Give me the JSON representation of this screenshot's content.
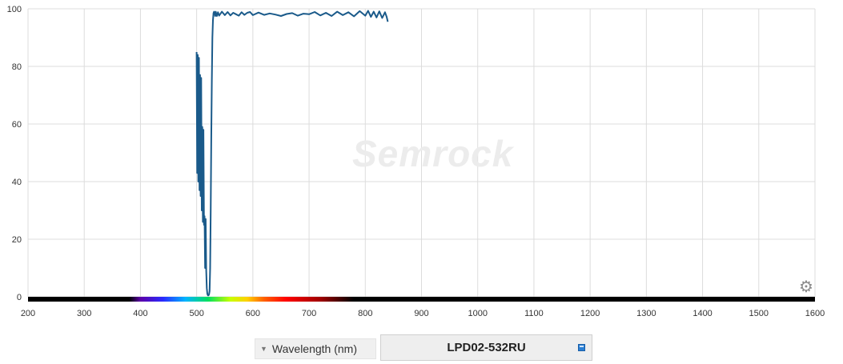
{
  "chart_data": {
    "type": "line",
    "title": "",
    "xlabel": "Wavelength (nm)",
    "ylabel": "",
    "xlim": [
      200,
      1600
    ],
    "ylim": [
      0,
      100
    ],
    "x_ticks": [
      200,
      300,
      400,
      500,
      600,
      700,
      800,
      900,
      1000,
      1100,
      1200,
      1300,
      1400,
      1500,
      1600
    ],
    "y_ticks": [
      0,
      20,
      40,
      60,
      80,
      100
    ],
    "grid": true,
    "series": [
      {
        "name": "LPD02-532RU",
        "color": "#1a5a8a",
        "x": [
          500,
          501,
          502,
          503,
          504,
          505,
          506,
          507,
          508,
          509,
          510,
          511,
          512,
          513,
          514,
          515,
          516,
          517,
          518,
          519,
          520,
          521,
          522,
          523,
          524,
          525,
          526,
          527,
          528,
          529,
          530,
          531,
          532,
          533,
          534,
          536,
          538,
          540,
          545,
          550,
          555,
          560,
          565,
          570,
          575,
          580,
          585,
          590,
          595,
          600,
          610,
          620,
          630,
          640,
          650,
          660,
          670,
          680,
          690,
          700,
          710,
          720,
          730,
          740,
          750,
          760,
          770,
          780,
          790,
          800,
          805,
          810,
          815,
          820,
          825,
          830,
          835,
          838,
          840
        ],
        "y": [
          85,
          43,
          84,
          40,
          83,
          37,
          77,
          35,
          76,
          30,
          59,
          26,
          58,
          25,
          28,
          10,
          27,
          9,
          3,
          1,
          0.5,
          0.5,
          0.8,
          2,
          10,
          30,
          55,
          75,
          90,
          96,
          98.5,
          99,
          98.7,
          97.5,
          99,
          97.5,
          98.8,
          97.6,
          99,
          97.8,
          98.9,
          97.7,
          98.6,
          98.1,
          97.6,
          98.8,
          97.9,
          98.6,
          98.9,
          97.8,
          98.7,
          97.9,
          98.4,
          98.0,
          97.5,
          98.2,
          98.5,
          97.6,
          98.3,
          98.1,
          98.9,
          97.7,
          98.6,
          97.5,
          99.0,
          97.8,
          98.8,
          97.4,
          99.2,
          97.6,
          99.3,
          97.2,
          99.0,
          97.0,
          99.1,
          96.8,
          98.8,
          97.2,
          95.5
        ]
      }
    ],
    "legend": "none"
  },
  "watermark": "Semrock",
  "controls": {
    "x_axis_select": "Wavelength (nm)",
    "product_name": "LPD02-532RU"
  },
  "spectrum_colors": [
    "#000000",
    "#5b00a8",
    "#2a2aff",
    "#00b4ff",
    "#00e060",
    "#c8ff00",
    "#ffd000",
    "#ff6000",
    "#ff0000",
    "#a00000",
    "#000000"
  ],
  "icons": {
    "settings": "gear-icon",
    "dropdown": "caret-down-icon",
    "product_badge": "save-icon"
  }
}
